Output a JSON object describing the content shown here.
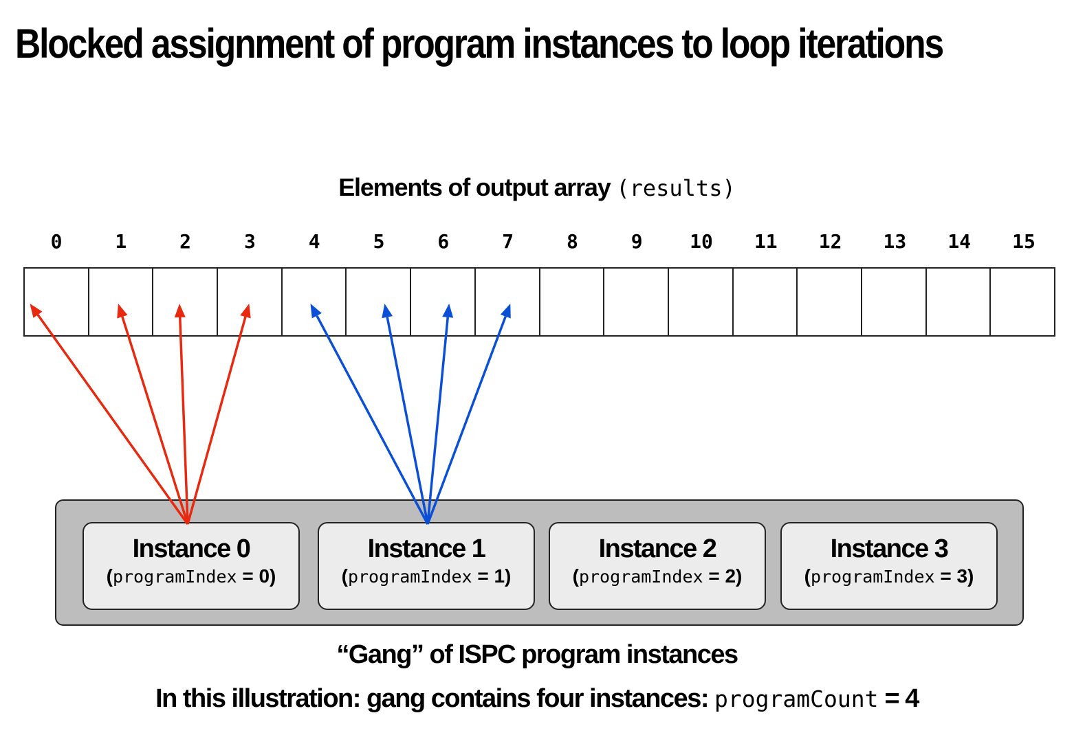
{
  "title": "Blocked assignment of program instances to loop iterations",
  "array": {
    "label": "Elements of output array",
    "code": "(results)",
    "indices": [
      "0",
      "1",
      "2",
      "3",
      "4",
      "5",
      "6",
      "7",
      "8",
      "9",
      "10",
      "11",
      "12",
      "13",
      "14",
      "15"
    ]
  },
  "instances": [
    {
      "name": "Instance 0",
      "open": "(",
      "code": "programIndex",
      "eq": " = 0)",
      "elements": [
        0,
        1,
        2,
        3
      ],
      "arrow_color": "#e8290f"
    },
    {
      "name": "Instance 1",
      "open": "(",
      "code": "programIndex",
      "eq": " = 1)",
      "elements": [
        4,
        5,
        6,
        7
      ],
      "arrow_color": "#0a4fd6"
    },
    {
      "name": "Instance 2",
      "open": "(",
      "code": "programIndex",
      "eq": " = 2)",
      "elements": [],
      "arrow_color": ""
    },
    {
      "name": "Instance 3",
      "open": "(",
      "code": "programIndex",
      "eq": " = 3)",
      "elements": [],
      "arrow_color": ""
    }
  ],
  "caption": {
    "gang": "“Gang” of ISPC program instances",
    "illustration_text": "In this illustration: gang contains four instances: ",
    "illustration_code": "programCount",
    "illustration_value": " = 4"
  }
}
